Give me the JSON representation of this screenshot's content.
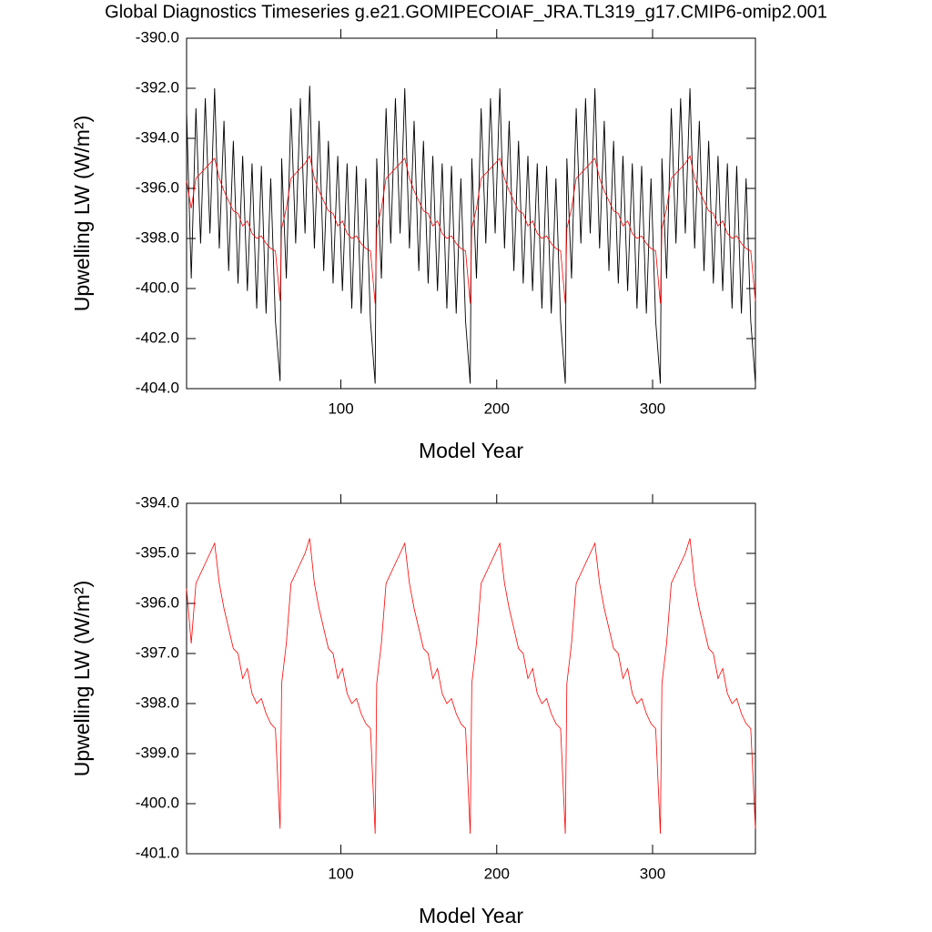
{
  "chart_data": [
    {
      "type": "line",
      "title": "Global Diagnostics Timeseries g.e21.GOMIPECOIAF_JRA.TL319_g17.CMIP6-omip2.001",
      "xlabel": "Model Year",
      "ylabel": "Upwelling LW (W/m²)",
      "xlim": [
        1,
        366
      ],
      "xticks": [
        100,
        200,
        300
      ],
      "ylim": [
        -404,
        -390
      ],
      "yticks": [
        {
          "value": -390,
          "label": "-390.0"
        },
        {
          "value": -392,
          "label": "-392.0"
        },
        {
          "value": -394,
          "label": "-394.0"
        },
        {
          "value": -396,
          "label": "-396.0"
        },
        {
          "value": -398,
          "label": "-398.0"
        },
        {
          "value": -400,
          "label": "-400.0"
        },
        {
          "value": -402,
          "label": "-402.0"
        },
        {
          "value": -404,
          "label": "-404.0"
        }
      ],
      "x": [
        1,
        4,
        7,
        10,
        13,
        16,
        19,
        22,
        25,
        28,
        31,
        34,
        37,
        40,
        43,
        46,
        49,
        52,
        55,
        58,
        61,
        62,
        65,
        68,
        71,
        74,
        77,
        80,
        83,
        86,
        89,
        92,
        95,
        98,
        101,
        104,
        107,
        110,
        113,
        116,
        119,
        122,
        123,
        126,
        129,
        132,
        135,
        138,
        141,
        144,
        147,
        150,
        153,
        156,
        159,
        162,
        165,
        168,
        171,
        174,
        177,
        180,
        183,
        184,
        187,
        190,
        193,
        196,
        199,
        202,
        205,
        208,
        211,
        214,
        217,
        220,
        223,
        226,
        229,
        232,
        235,
        238,
        241,
        244,
        245,
        248,
        251,
        254,
        257,
        260,
        263,
        266,
        269,
        272,
        275,
        278,
        281,
        284,
        287,
        290,
        293,
        296,
        299,
        302,
        305,
        306,
        309,
        312,
        315,
        318,
        321,
        324,
        327,
        330,
        333,
        336,
        339,
        342,
        345,
        348,
        351,
        354,
        357,
        360,
        363,
        366
      ],
      "series": [
        {
          "color": "#000000",
          "values": [
            -392.9,
            -399.6,
            -392.8,
            -398.2,
            -392.4,
            -397.8,
            -392.0,
            -398.4,
            -393.3,
            -399.3,
            -394.1,
            -399.8,
            -394.7,
            -400.1,
            -395.0,
            -400.8,
            -395.1,
            -401.0,
            -395.6,
            -401.3,
            -403.7,
            -394.8,
            -399.6,
            -392.8,
            -398.2,
            -392.4,
            -397.8,
            -391.9,
            -398.4,
            -393.3,
            -399.3,
            -394.1,
            -399.8,
            -394.7,
            -400.1,
            -395.0,
            -400.8,
            -395.1,
            -401.0,
            -395.6,
            -401.3,
            -403.8,
            -394.8,
            -399.6,
            -392.8,
            -398.2,
            -392.4,
            -397.8,
            -392.0,
            -398.4,
            -393.3,
            -399.3,
            -394.1,
            -399.8,
            -394.7,
            -400.1,
            -395.0,
            -400.8,
            -395.1,
            -401.0,
            -395.6,
            -401.3,
            -403.8,
            -394.8,
            -399.6,
            -392.8,
            -398.2,
            -392.4,
            -397.8,
            -392.0,
            -398.4,
            -393.3,
            -399.3,
            -394.1,
            -399.8,
            -394.7,
            -400.1,
            -395.0,
            -400.8,
            -395.1,
            -401.0,
            -395.6,
            -401.3,
            -403.8,
            -394.8,
            -399.6,
            -392.8,
            -398.2,
            -392.4,
            -397.8,
            -392.0,
            -398.4,
            -393.3,
            -399.3,
            -394.1,
            -399.8,
            -394.7,
            -400.1,
            -395.0,
            -400.8,
            -395.1,
            -401.0,
            -395.6,
            -401.3,
            -403.8,
            -394.8,
            -399.6,
            -392.8,
            -398.2,
            -392.4,
            -397.8,
            -392.0,
            -398.4,
            -393.3,
            -399.3,
            -394.1,
            -399.8,
            -394.7,
            -400.1,
            -395.0,
            -400.8,
            -395.1,
            -401.0,
            -395.6,
            -401.3,
            -403.8
          ]
        },
        {
          "color": "#ff0000",
          "values": [
            -395.7,
            -396.8,
            -395.6,
            -395.4,
            -395.2,
            -395.0,
            -394.8,
            -395.6,
            -396.1,
            -396.5,
            -396.9,
            -397.0,
            -397.5,
            -397.3,
            -397.8,
            -398.0,
            -397.9,
            -398.2,
            -398.4,
            -398.5,
            -400.5,
            -397.6,
            -396.8,
            -395.6,
            -395.4,
            -395.2,
            -395.0,
            -394.7,
            -395.6,
            -396.1,
            -396.5,
            -396.9,
            -397.0,
            -397.5,
            -397.3,
            -397.8,
            -398.0,
            -397.9,
            -398.2,
            -398.4,
            -398.5,
            -400.6,
            -397.6,
            -396.8,
            -395.6,
            -395.4,
            -395.2,
            -395.0,
            -394.8,
            -395.6,
            -396.1,
            -396.5,
            -396.9,
            -397.0,
            -397.5,
            -397.3,
            -397.8,
            -398.0,
            -397.9,
            -398.2,
            -398.4,
            -398.5,
            -400.6,
            -397.6,
            -396.8,
            -395.6,
            -395.4,
            -395.2,
            -395.0,
            -394.8,
            -395.6,
            -396.1,
            -396.5,
            -396.9,
            -397.0,
            -397.5,
            -397.3,
            -397.8,
            -398.0,
            -397.9,
            -398.2,
            -398.4,
            -398.5,
            -400.6,
            -397.6,
            -396.8,
            -395.6,
            -395.4,
            -395.2,
            -395.0,
            -394.8,
            -395.6,
            -396.1,
            -396.5,
            -396.9,
            -397.0,
            -397.5,
            -397.3,
            -397.8,
            -398.0,
            -397.9,
            -398.2,
            -398.4,
            -398.5,
            -400.6,
            -397.6,
            -396.8,
            -395.6,
            -395.4,
            -395.2,
            -395.0,
            -394.7,
            -395.6,
            -396.1,
            -396.5,
            -396.9,
            -397.0,
            -397.5,
            -397.3,
            -397.8,
            -398.0,
            -397.9,
            -398.2,
            -398.4,
            -398.5,
            -400.5
          ]
        }
      ]
    },
    {
      "type": "line",
      "xlabel": "Model Year",
      "ylabel": "Upwelling LW (W/m²)",
      "xlim": [
        1,
        366
      ],
      "xticks": [
        100,
        200,
        300
      ],
      "ylim": [
        -401,
        -394
      ],
      "yticks": [
        {
          "value": -394,
          "label": "-394.0"
        },
        {
          "value": -395,
          "label": "-395.0"
        },
        {
          "value": -396,
          "label": "-396.0"
        },
        {
          "value": -397,
          "label": "-397.0"
        },
        {
          "value": -398,
          "label": "-398.0"
        },
        {
          "value": -399,
          "label": "-399.0"
        },
        {
          "value": -400,
          "label": "-400.0"
        },
        {
          "value": -401,
          "label": "-401.0"
        }
      ],
      "x": [
        1,
        4,
        7,
        10,
        13,
        16,
        19,
        22,
        25,
        28,
        31,
        34,
        37,
        40,
        43,
        46,
        49,
        52,
        55,
        58,
        61,
        62,
        65,
        68,
        71,
        74,
        77,
        80,
        83,
        86,
        89,
        92,
        95,
        98,
        101,
        104,
        107,
        110,
        113,
        116,
        119,
        122,
        123,
        126,
        129,
        132,
        135,
        138,
        141,
        144,
        147,
        150,
        153,
        156,
        159,
        162,
        165,
        168,
        171,
        174,
        177,
        180,
        183,
        184,
        187,
        190,
        193,
        196,
        199,
        202,
        205,
        208,
        211,
        214,
        217,
        220,
        223,
        226,
        229,
        232,
        235,
        238,
        241,
        244,
        245,
        248,
        251,
        254,
        257,
        260,
        263,
        266,
        269,
        272,
        275,
        278,
        281,
        284,
        287,
        290,
        293,
        296,
        299,
        302,
        305,
        306,
        309,
        312,
        315,
        318,
        321,
        324,
        327,
        330,
        333,
        336,
        339,
        342,
        345,
        348,
        351,
        354,
        357,
        360,
        363,
        366
      ],
      "series": [
        {
          "color": "#ff0000",
          "values": [
            -395.7,
            -396.8,
            -395.6,
            -395.4,
            -395.2,
            -395.0,
            -394.8,
            -395.6,
            -396.1,
            -396.5,
            -396.9,
            -397.0,
            -397.5,
            -397.3,
            -397.8,
            -398.0,
            -397.9,
            -398.2,
            -398.4,
            -398.5,
            -400.5,
            -397.6,
            -396.8,
            -395.6,
            -395.4,
            -395.2,
            -395.0,
            -394.7,
            -395.6,
            -396.1,
            -396.5,
            -396.9,
            -397.0,
            -397.5,
            -397.3,
            -397.8,
            -398.0,
            -397.9,
            -398.2,
            -398.4,
            -398.5,
            -400.6,
            -397.6,
            -396.8,
            -395.6,
            -395.4,
            -395.2,
            -395.0,
            -394.8,
            -395.6,
            -396.1,
            -396.5,
            -396.9,
            -397.0,
            -397.5,
            -397.3,
            -397.8,
            -398.0,
            -397.9,
            -398.2,
            -398.4,
            -398.5,
            -400.6,
            -397.6,
            -396.8,
            -395.6,
            -395.4,
            -395.2,
            -395.0,
            -394.8,
            -395.6,
            -396.1,
            -396.5,
            -396.9,
            -397.0,
            -397.5,
            -397.3,
            -397.8,
            -398.0,
            -397.9,
            -398.2,
            -398.4,
            -398.5,
            -400.6,
            -397.6,
            -396.8,
            -395.6,
            -395.4,
            -395.2,
            -395.0,
            -394.8,
            -395.6,
            -396.1,
            -396.5,
            -396.9,
            -397.0,
            -397.5,
            -397.3,
            -397.8,
            -398.0,
            -397.9,
            -398.2,
            -398.4,
            -398.5,
            -400.6,
            -397.6,
            -396.8,
            -395.6,
            -395.4,
            -395.2,
            -395.0,
            -394.7,
            -395.6,
            -396.1,
            -396.5,
            -396.9,
            -397.0,
            -397.5,
            -397.3,
            -397.8,
            -398.0,
            -397.9,
            -398.2,
            -398.4,
            -398.5,
            -400.5
          ]
        }
      ]
    }
  ]
}
